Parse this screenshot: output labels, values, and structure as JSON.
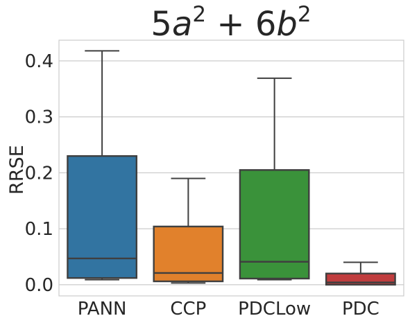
{
  "chart_data": {
    "type": "box",
    "title": "5a² + 6b²",
    "title_parts": {
      "c1": "5",
      "v1": "a",
      "e1": "2",
      "op": " + ",
      "c2": "6",
      "v2": "b",
      "e2": "2"
    },
    "xlabel": "",
    "ylabel": "RRSE",
    "ylim": [
      -0.02,
      0.437
    ],
    "yticks": [
      0.0,
      0.1,
      0.2,
      0.3,
      0.4
    ],
    "ytick_labels": [
      "0.0",
      "0.1",
      "0.2",
      "0.3",
      "0.4"
    ],
    "grid": true,
    "categories": [
      "PANN",
      "CCP",
      "PDCLow",
      "PDC"
    ],
    "boxes": [
      {
        "label": "PANN",
        "whisker_low": 0.009,
        "q1": 0.012,
        "median": 0.047,
        "q3": 0.23,
        "whisker_high": 0.418,
        "color": "#3274a1"
      },
      {
        "label": "CCP",
        "whisker_low": 0.003,
        "q1": 0.006,
        "median": 0.021,
        "q3": 0.104,
        "whisker_high": 0.19,
        "color": "#e1812c"
      },
      {
        "label": "PDCLow",
        "whisker_low": 0.009,
        "q1": 0.011,
        "median": 0.041,
        "q3": 0.205,
        "whisker_high": 0.369,
        "color": "#3a923a"
      },
      {
        "label": "PDC",
        "whisker_low": 0.0,
        "q1": 0.0,
        "median": 0.004,
        "q3": 0.02,
        "whisker_high": 0.04,
        "color": "#c03d3e"
      }
    ],
    "colors": {
      "edge": "#3f3f3f",
      "grid": "#cccccc",
      "spine": "#cccccc",
      "text": "#262626"
    }
  }
}
